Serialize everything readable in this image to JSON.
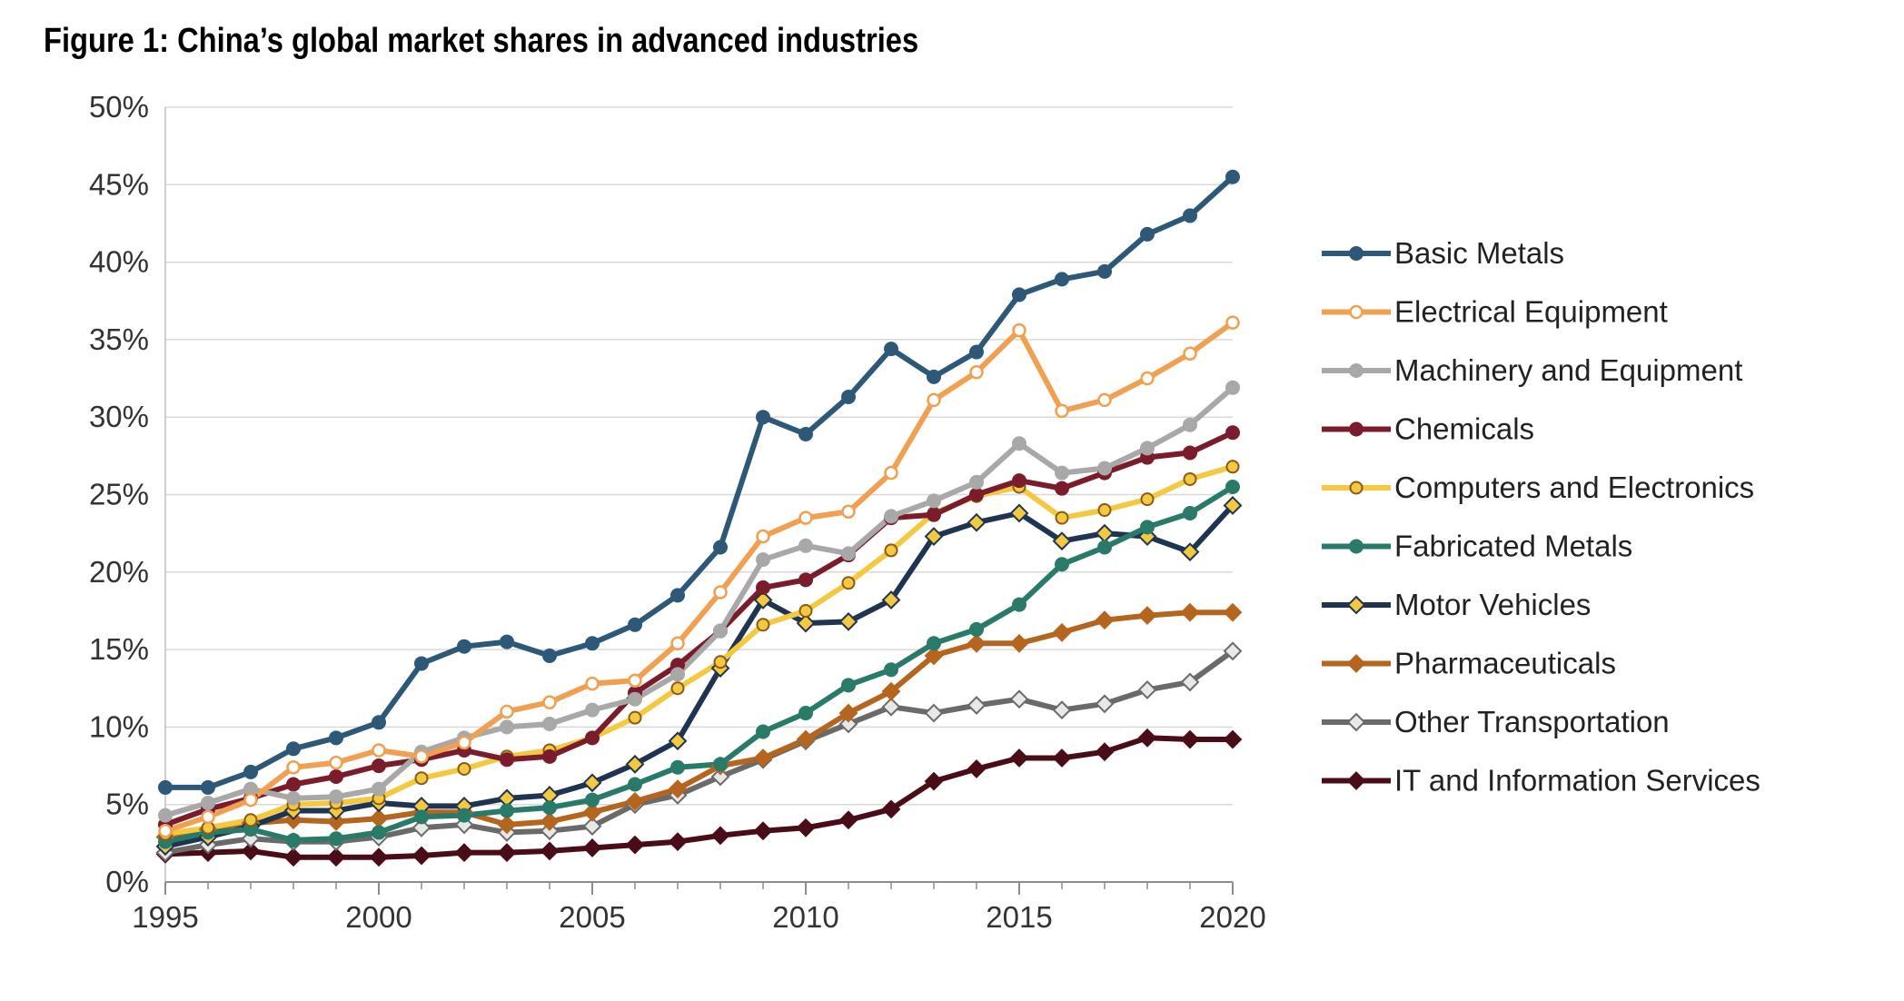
{
  "chart_data": {
    "type": "line",
    "title": "Figure 1: China’s global market shares in advanced industries",
    "xlabel": "",
    "ylabel": "",
    "x": [
      1995,
      1996,
      1997,
      1998,
      1999,
      2000,
      2001,
      2002,
      2003,
      2004,
      2005,
      2006,
      2007,
      2008,
      2009,
      2010,
      2011,
      2012,
      2013,
      2014,
      2015,
      2016,
      2017,
      2018,
      2019,
      2020
    ],
    "xlim": [
      1995,
      2020
    ],
    "ylim": [
      0,
      50
    ],
    "x_ticks": [
      "1995",
      "2000",
      "2005",
      "2010",
      "2015",
      "2020"
    ],
    "y_ticks": [
      "0%",
      "5%",
      "10%",
      "15%",
      "20%",
      "25%",
      "30%",
      "35%",
      "40%",
      "45%",
      "50%"
    ],
    "grid": "horizontal",
    "legend_position": "right",
    "series": [
      {
        "name": "Basic Metals",
        "color": "#2e5878",
        "marker": "circle-filled",
        "values": [
          6.1,
          6.1,
          7.1,
          8.6,
          9.3,
          10.3,
          14.1,
          15.2,
          15.5,
          14.6,
          15.4,
          16.6,
          18.5,
          21.6,
          30.0,
          28.9,
          31.3,
          34.4,
          32.6,
          34.2,
          37.9,
          38.9,
          39.4,
          41.8,
          43.0,
          45.5
        ]
      },
      {
        "name": "Electrical Equipment",
        "color": "#f0a050",
        "marker": "circle-open",
        "values": [
          3.3,
          4.2,
          5.3,
          7.4,
          7.7,
          8.5,
          8.1,
          9.0,
          11.0,
          11.6,
          12.8,
          13.0,
          15.4,
          18.7,
          22.3,
          23.5,
          23.9,
          26.4,
          31.1,
          32.9,
          35.6,
          30.4,
          31.1,
          32.5,
          34.1,
          36.1
        ]
      },
      {
        "name": "Machinery and Equipment",
        "color": "#a8a8a8",
        "marker": "circle-filled",
        "values": [
          4.3,
          5.1,
          6.0,
          5.4,
          5.5,
          6.0,
          8.4,
          9.3,
          10.0,
          10.2,
          11.1,
          11.8,
          13.4,
          16.2,
          20.8,
          21.7,
          21.2,
          23.6,
          24.6,
          25.8,
          28.3,
          26.4,
          26.7,
          28.0,
          29.5,
          31.9
        ]
      },
      {
        "name": "Chemicals",
        "color": "#7b1c2c",
        "marker": "circle-filled",
        "values": [
          3.7,
          4.7,
          5.4,
          6.3,
          6.8,
          7.5,
          7.9,
          8.5,
          7.9,
          8.1,
          9.3,
          12.2,
          14.0,
          16.2,
          19.0,
          19.5,
          21.1,
          23.5,
          23.7,
          25.0,
          25.9,
          25.4,
          26.4,
          27.4,
          27.7,
          29.0
        ]
      },
      {
        "name": "Computers and Electronics",
        "color": "#f5c842",
        "marker": "circle-ring",
        "values": [
          3.1,
          3.5,
          4.0,
          5.0,
          5.1,
          5.4,
          6.7,
          7.3,
          8.1,
          8.5,
          9.3,
          10.6,
          12.5,
          14.2,
          16.6,
          17.5,
          19.3,
          21.4,
          23.8,
          24.9,
          25.5,
          23.5,
          24.0,
          24.7,
          26.0,
          26.8
        ]
      },
      {
        "name": "Fabricated Metals",
        "color": "#2a7a6a",
        "marker": "circle-filled",
        "values": [
          2.6,
          3.2,
          3.4,
          2.7,
          2.8,
          3.2,
          4.2,
          4.3,
          4.6,
          4.8,
          5.3,
          6.3,
          7.4,
          7.6,
          9.7,
          10.9,
          12.7,
          13.7,
          15.4,
          16.3,
          17.9,
          20.5,
          21.6,
          22.9,
          23.8,
          25.5
        ]
      },
      {
        "name": "Motor Vehicles",
        "color": "#1e3450",
        "marker": "diamond-yellow",
        "values": [
          2.3,
          2.9,
          3.6,
          4.6,
          4.6,
          5.1,
          4.9,
          4.9,
          5.4,
          5.6,
          6.4,
          7.6,
          9.1,
          13.8,
          18.2,
          16.7,
          16.8,
          18.2,
          22.3,
          23.2,
          23.8,
          22.0,
          22.5,
          22.3,
          21.3,
          24.3
        ]
      },
      {
        "name": "Pharmaceuticals",
        "color": "#b5651d",
        "marker": "diamond-filled",
        "values": [
          2.9,
          3.4,
          3.8,
          4.0,
          3.9,
          4.1,
          4.5,
          4.5,
          3.7,
          3.9,
          4.5,
          5.2,
          6.0,
          7.5,
          8.0,
          9.2,
          10.9,
          12.3,
          14.6,
          15.4,
          15.4,
          16.1,
          16.9,
          17.2,
          17.4,
          17.4
        ]
      },
      {
        "name": "Other Transportation",
        "color": "#6a6a6a",
        "marker": "diamond-open",
        "values": [
          1.9,
          2.4,
          2.8,
          2.6,
          2.6,
          2.9,
          3.5,
          3.7,
          3.2,
          3.3,
          3.6,
          5.0,
          5.6,
          6.8,
          7.9,
          9.1,
          10.2,
          11.3,
          10.9,
          11.4,
          11.8,
          11.1,
          11.5,
          12.4,
          12.9,
          14.9
        ]
      },
      {
        "name": "IT and Information Services",
        "color": "#4a0d18",
        "marker": "diamond-filled",
        "values": [
          1.8,
          1.9,
          2.0,
          1.6,
          1.6,
          1.6,
          1.7,
          1.9,
          1.9,
          2.0,
          2.2,
          2.4,
          2.6,
          3.0,
          3.3,
          3.5,
          4.0,
          4.7,
          6.5,
          7.3,
          8.0,
          8.0,
          8.4,
          9.3,
          9.2,
          9.2
        ]
      }
    ]
  }
}
